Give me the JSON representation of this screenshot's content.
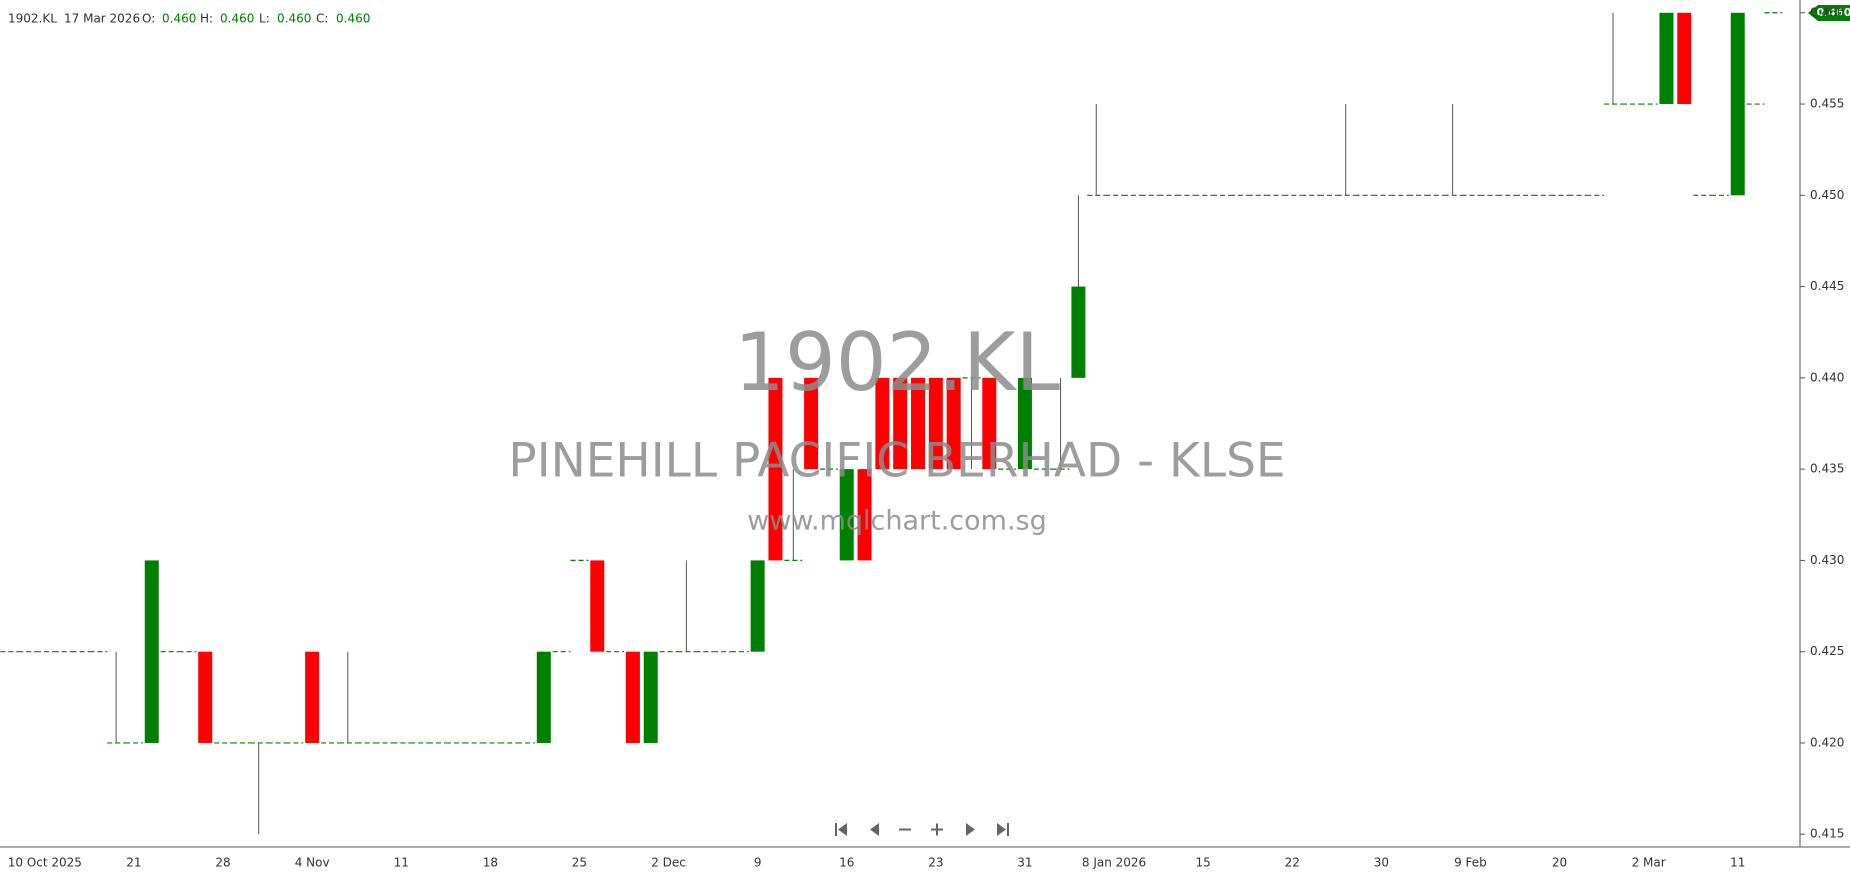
{
  "header": {
    "symbol": "1902.KL",
    "date": "17 Mar 2026",
    "open_label": "O:",
    "open": "0.460",
    "high_label": "H:",
    "high": "0.460",
    "low_label": "L:",
    "low": "0.460",
    "close_label": "C:",
    "close": "0.460"
  },
  "watermark": {
    "code": "1902.KL",
    "name": "PINEHILL PACIFIC BERHAD - KLSE",
    "site": "www.mqlchart.com.sg"
  },
  "last_price_label": "0.460",
  "chart_data": {
    "type": "candlestick",
    "up_color": "#008000",
    "down_color": "#ff0000",
    "wick_color": "#555555",
    "categories": [
      null,
      null,
      "10 Oct 2025",
      null,
      null,
      null,
      null,
      "21",
      null,
      null,
      null,
      null,
      "28",
      null,
      null,
      null,
      null,
      "4 Nov",
      null,
      null,
      null,
      null,
      "11",
      null,
      null,
      null,
      null,
      "18",
      null,
      null,
      null,
      null,
      "25",
      null,
      null,
      null,
      null,
      "2 Dec",
      null,
      null,
      null,
      null,
      "9",
      null,
      null,
      null,
      null,
      "16",
      null,
      null,
      null,
      null,
      "23",
      null,
      null,
      null,
      null,
      "31",
      null,
      null,
      null,
      null,
      "8 Jan 2026",
      null,
      null,
      null,
      null,
      "15",
      null,
      null,
      null,
      null,
      "22",
      null,
      null,
      null,
      null,
      "30",
      null,
      null,
      null,
      null,
      "9 Feb",
      null,
      null,
      null,
      null,
      "20",
      null,
      null,
      null,
      null,
      "2 Mar",
      null,
      null,
      null,
      null,
      "11",
      null,
      null
    ],
    "open": [
      0.425,
      0.425,
      0.425,
      0.425,
      0.425,
      0.425,
      0.42,
      0.42,
      0.42,
      0.425,
      0.425,
      0.425,
      0.42,
      0.42,
      0.42,
      0.42,
      0.42,
      0.425,
      0.42,
      0.42,
      0.42,
      0.42,
      0.42,
      0.42,
      0.42,
      0.42,
      0.42,
      0.42,
      0.42,
      0.42,
      0.42,
      0.425,
      0.43,
      0.43,
      0.425,
      0.425,
      0.42,
      0.425,
      0.425,
      0.425,
      0.425,
      0.425,
      0.425,
      0.44,
      0.43,
      0.44,
      0.435,
      0.43,
      0.435,
      0.44,
      0.44,
      0.44,
      0.44,
      0.44,
      0.44,
      0.44,
      0.435,
      0.435,
      0.435,
      0.435,
      0.44,
      0.45,
      0.45,
      0.45,
      0.45,
      0.45,
      0.45,
      0.45,
      0.45,
      0.45,
      0.45,
      0.45,
      0.45,
      0.45,
      0.45,
      0.45,
      0.45,
      0.45,
      0.45,
      0.45,
      0.45,
      0.45,
      0.45,
      0.45,
      0.45,
      0.45,
      0.45,
      0.45,
      0.45,
      0.45,
      0.455,
      0.455,
      0.455,
      0.455,
      0.46,
      0.45,
      0.45,
      0.45,
      0.455,
      0.46
    ],
    "high": [
      0.425,
      0.425,
      0.425,
      0.425,
      0.425,
      0.425,
      0.425,
      0.42,
      0.43,
      0.425,
      0.425,
      0.425,
      0.42,
      0.42,
      0.42,
      0.42,
      0.42,
      0.425,
      0.42,
      0.425,
      0.42,
      0.42,
      0.42,
      0.42,
      0.42,
      0.42,
      0.42,
      0.42,
      0.42,
      0.42,
      0.425,
      0.425,
      0.43,
      0.43,
      0.425,
      0.425,
      0.425,
      0.425,
      0.43,
      0.425,
      0.425,
      0.425,
      0.43,
      0.44,
      0.435,
      0.44,
      0.435,
      0.435,
      0.435,
      0.44,
      0.44,
      0.44,
      0.44,
      0.44,
      0.44,
      0.44,
      0.435,
      0.44,
      0.435,
      0.44,
      0.45,
      0.455,
      0.45,
      0.45,
      0.45,
      0.45,
      0.45,
      0.45,
      0.45,
      0.45,
      0.45,
      0.45,
      0.45,
      0.45,
      0.45,
      0.455,
      0.45,
      0.45,
      0.45,
      0.45,
      0.45,
      0.455,
      0.45,
      0.45,
      0.45,
      0.45,
      0.45,
      0.45,
      0.45,
      0.45,
      0.46,
      0.455,
      0.455,
      0.46,
      0.46,
      0.45,
      0.45,
      0.46,
      0.455,
      0.46
    ],
    "low": [
      0.425,
      0.425,
      0.425,
      0.425,
      0.425,
      0.425,
      0.42,
      0.42,
      0.42,
      0.425,
      0.425,
      0.42,
      0.42,
      0.42,
      0.415,
      0.42,
      0.42,
      0.42,
      0.42,
      0.42,
      0.42,
      0.42,
      0.42,
      0.42,
      0.42,
      0.42,
      0.42,
      0.42,
      0.42,
      0.42,
      0.42,
      0.425,
      0.43,
      0.425,
      0.425,
      0.42,
      0.42,
      0.425,
      0.425,
      0.425,
      0.425,
      0.425,
      0.425,
      0.43,
      0.43,
      0.435,
      0.435,
      0.43,
      0.43,
      0.435,
      0.435,
      0.435,
      0.435,
      0.435,
      0.435,
      0.435,
      0.435,
      0.435,
      0.435,
      0.435,
      0.44,
      0.45,
      0.45,
      0.45,
      0.45,
      0.45,
      0.45,
      0.45,
      0.45,
      0.45,
      0.45,
      0.45,
      0.45,
      0.45,
      0.45,
      0.45,
      0.45,
      0.45,
      0.45,
      0.45,
      0.45,
      0.45,
      0.45,
      0.45,
      0.45,
      0.45,
      0.45,
      0.45,
      0.45,
      0.45,
      0.455,
      0.455,
      0.455,
      0.455,
      0.455,
      0.45,
      0.45,
      0.45,
      0.455,
      0.46
    ],
    "close": [
      0.425,
      0.425,
      0.425,
      0.425,
      0.425,
      0.425,
      0.42,
      0.42,
      0.43,
      0.425,
      0.425,
      0.42,
      0.42,
      0.42,
      0.42,
      0.42,
      0.42,
      0.42,
      0.42,
      0.42,
      0.42,
      0.42,
      0.42,
      0.42,
      0.42,
      0.42,
      0.42,
      0.42,
      0.42,
      0.42,
      0.425,
      0.425,
      0.43,
      0.425,
      0.425,
      0.42,
      0.425,
      0.425,
      0.425,
      0.425,
      0.425,
      0.425,
      0.43,
      0.43,
      0.43,
      0.435,
      0.435,
      0.435,
      0.43,
      0.435,
      0.435,
      0.435,
      0.435,
      0.435,
      0.44,
      0.435,
      0.435,
      0.44,
      0.435,
      0.435,
      0.445,
      0.45,
      0.45,
      0.45,
      0.45,
      0.45,
      0.45,
      0.45,
      0.45,
      0.45,
      0.45,
      0.45,
      0.45,
      0.45,
      0.45,
      0.45,
      0.45,
      0.45,
      0.45,
      0.45,
      0.45,
      0.45,
      0.45,
      0.45,
      0.45,
      0.45,
      0.45,
      0.45,
      0.45,
      0.45,
      0.455,
      0.455,
      0.455,
      0.46,
      0.455,
      0.45,
      0.45,
      0.46,
      0.455,
      0.46
    ],
    "ylim": [
      0.4143,
      0.4607
    ],
    "yticks": [
      0.415,
      {
        "value": 0.42,
        "label": "0.420"
      },
      0.425,
      {
        "value": 0.43,
        "label": "0.430"
      },
      0.435,
      {
        "value": 0.44,
        "label": "0.440"
      },
      0.445,
      {
        "value": 0.45,
        "label": "0.450"
      },
      0.455,
      {
        "value": 0.46,
        "label": "0.460"
      }
    ],
    "grid": false
  }
}
